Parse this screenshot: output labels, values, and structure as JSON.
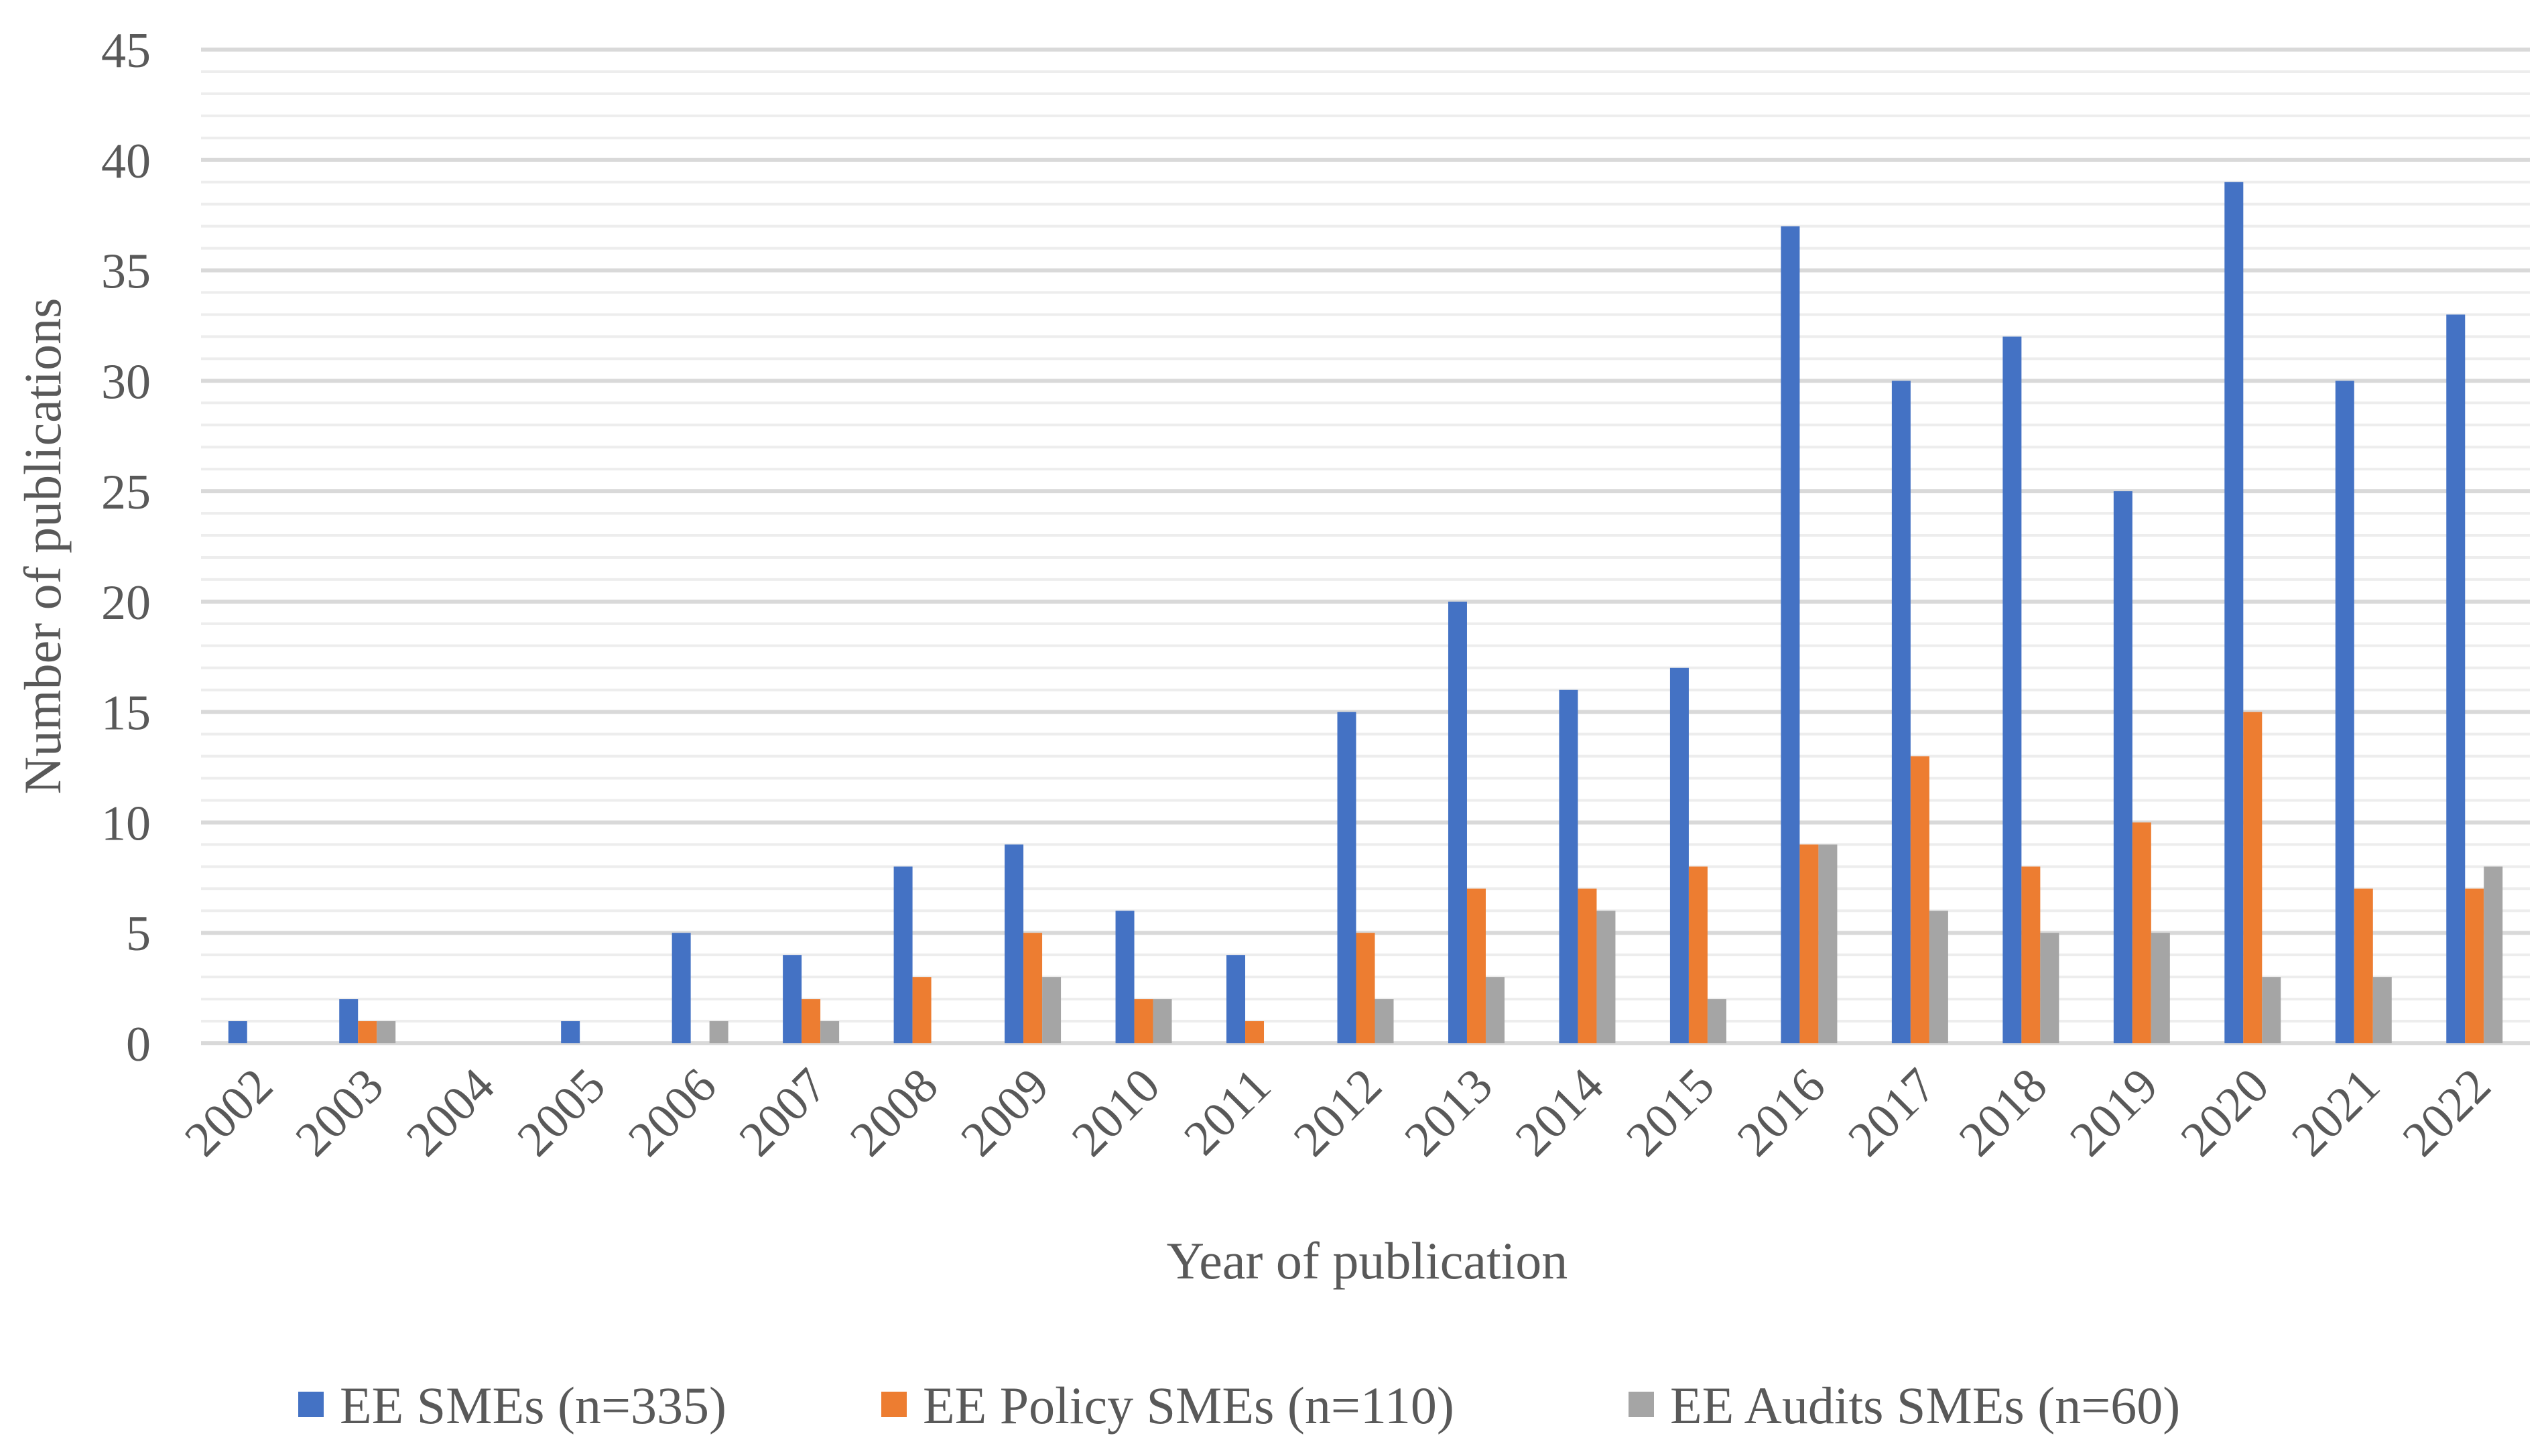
{
  "chart_data": {
    "type": "bar",
    "title": "",
    "xlabel": "Year of publication",
    "ylabel": "Number of publications",
    "ylim": [
      0,
      45
    ],
    "yticks": [
      0,
      5,
      10,
      15,
      20,
      25,
      30,
      35,
      40,
      45
    ],
    "minor_grid_step": 1,
    "grid": true,
    "legend_position": "bottom",
    "categories": [
      "2002",
      "2003",
      "2004",
      "2005",
      "2006",
      "2007",
      "2008",
      "2009",
      "2010",
      "2011",
      "2012",
      "2013",
      "2014",
      "2015",
      "2016",
      "2017",
      "2018",
      "2019",
      "2020",
      "2021",
      "2022"
    ],
    "series": [
      {
        "name": "EE SMEs (n=335)",
        "color": "#4472C4",
        "values": [
          1,
          2,
          0,
          1,
          5,
          4,
          8,
          9,
          6,
          4,
          15,
          20,
          16,
          17,
          37,
          30,
          32,
          25,
          39,
          30,
          33
        ]
      },
      {
        "name": "EE Policy SMEs (n=110)",
        "color": "#ED7D31",
        "values": [
          0,
          1,
          0,
          0,
          0,
          2,
          3,
          5,
          2,
          1,
          5,
          7,
          7,
          8,
          9,
          13,
          8,
          10,
          15,
          7,
          7
        ]
      },
      {
        "name": "EE Audits SMEs (n=60)",
        "color": "#A5A5A5",
        "values": [
          0,
          1,
          0,
          0,
          1,
          1,
          0,
          3,
          2,
          0,
          2,
          3,
          6,
          2,
          9,
          6,
          5,
          5,
          3,
          3,
          8
        ]
      }
    ]
  }
}
